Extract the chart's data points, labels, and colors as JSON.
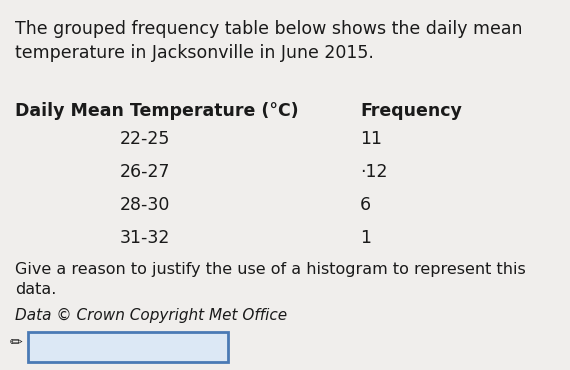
{
  "intro_text": "The grouped frequency table below shows the daily mean\ntemperature in Jacksonville in June 2015.",
  "table_header_col1": "Daily Mean Temperature (°C)",
  "table_header_col2": "Frequency",
  "table_rows": [
    [
      "22-25",
      "11"
    ],
    [
      "26-27",
      "·12"
    ],
    [
      "28-30",
      "6"
    ],
    [
      "31-32",
      "1"
    ]
  ],
  "question_text": "Give a reason to justify the use of a histogram to represent this\ndata.",
  "copyright_text": "Data © Crown Copyright Met Office",
  "bg_color": "#f0eeec",
  "text_color": "#1a1a1a",
  "input_box_color": "#dce8f5",
  "input_box_border": "#4a7ab5",
  "intro_fontsize": 12.5,
  "header_fontsize": 12.5,
  "row_fontsize": 12.5,
  "question_fontsize": 11.5,
  "copyright_fontsize": 11
}
